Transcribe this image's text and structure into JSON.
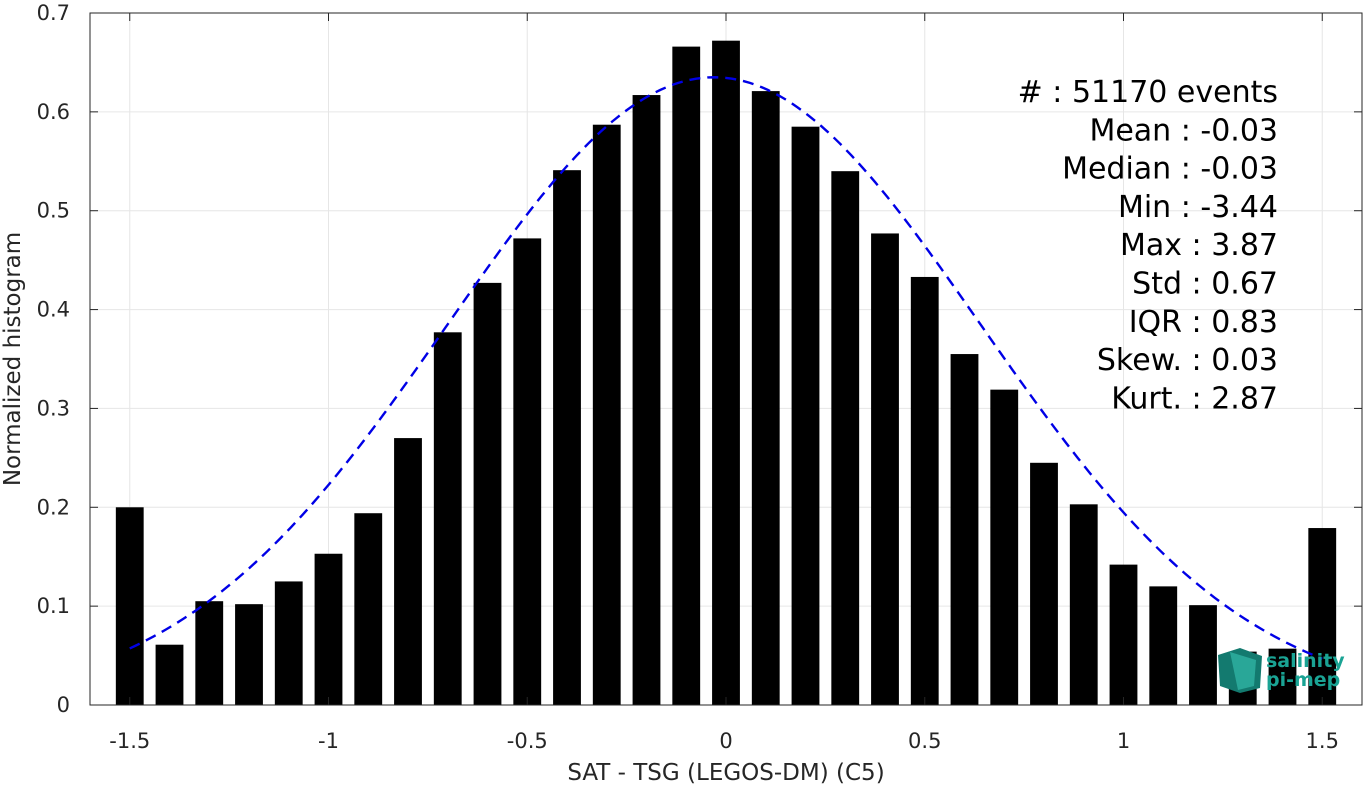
{
  "chart_data": {
    "type": "bar",
    "xlabel": "SAT - TSG (LEGOS-DM) (C5)",
    "ylabel": "Normalized histogram",
    "xlim": [
      -1.6,
      1.6
    ],
    "ylim": [
      0,
      0.7
    ],
    "grid": true,
    "xticks": [
      -1.5,
      -1,
      -0.5,
      0,
      0.5,
      1,
      1.5
    ],
    "xtick_labels": [
      "-1.5",
      "-1",
      "-0.5",
      "0",
      "0.5",
      "1",
      "1.5"
    ],
    "yticks": [
      0,
      0.1,
      0.2,
      0.3,
      0.4,
      0.5,
      0.6,
      0.7
    ],
    "ytick_labels": [
      "0",
      "0.1",
      "0.2",
      "0.3",
      "0.4",
      "0.5",
      "0.6",
      "0.7"
    ],
    "bin_width": 0.1,
    "bar_width_fraction": 0.7,
    "bins": [
      -1.5,
      -1.4,
      -1.3,
      -1.2,
      -1.1,
      -1.0,
      -0.9,
      -0.8,
      -0.7,
      -0.6,
      -0.5,
      -0.4,
      -0.3,
      -0.2,
      -0.1,
      0.0,
      0.1,
      0.2,
      0.3,
      0.4,
      0.5,
      0.6,
      0.7,
      0.8,
      0.9,
      1.0,
      1.1,
      1.2,
      1.3,
      1.4,
      1.5
    ],
    "values": [
      0.2,
      0.061,
      0.105,
      0.102,
      0.125,
      0.153,
      0.194,
      0.27,
      0.377,
      0.427,
      0.472,
      0.541,
      0.587,
      0.617,
      0.666,
      0.672,
      0.621,
      0.585,
      0.54,
      0.477,
      0.433,
      0.355,
      0.319,
      0.245,
      0.203,
      0.142,
      0.12,
      0.101,
      0.054,
      0.057,
      0.179
    ],
    "bar_color": "#000000",
    "fit_curve": {
      "type": "gaussian",
      "mean": -0.03,
      "std": 0.67,
      "peak": 0.635,
      "x_range": [
        -1.5,
        1.5
      ],
      "color": "#0000e6",
      "style": "dashed"
    },
    "stats_lines": [
      "#  : 51170 events",
      "Mean : -0.03",
      "Median : -0.03",
      "Min : -3.44",
      "Max : 3.87",
      "Std : 0.67",
      "IQR : 0.83",
      "Skew. : 0.03",
      "Kurt. : 2.87"
    ]
  },
  "logo": {
    "line1": "salinity",
    "line2": "pi-mep",
    "color": "#1aa394"
  }
}
